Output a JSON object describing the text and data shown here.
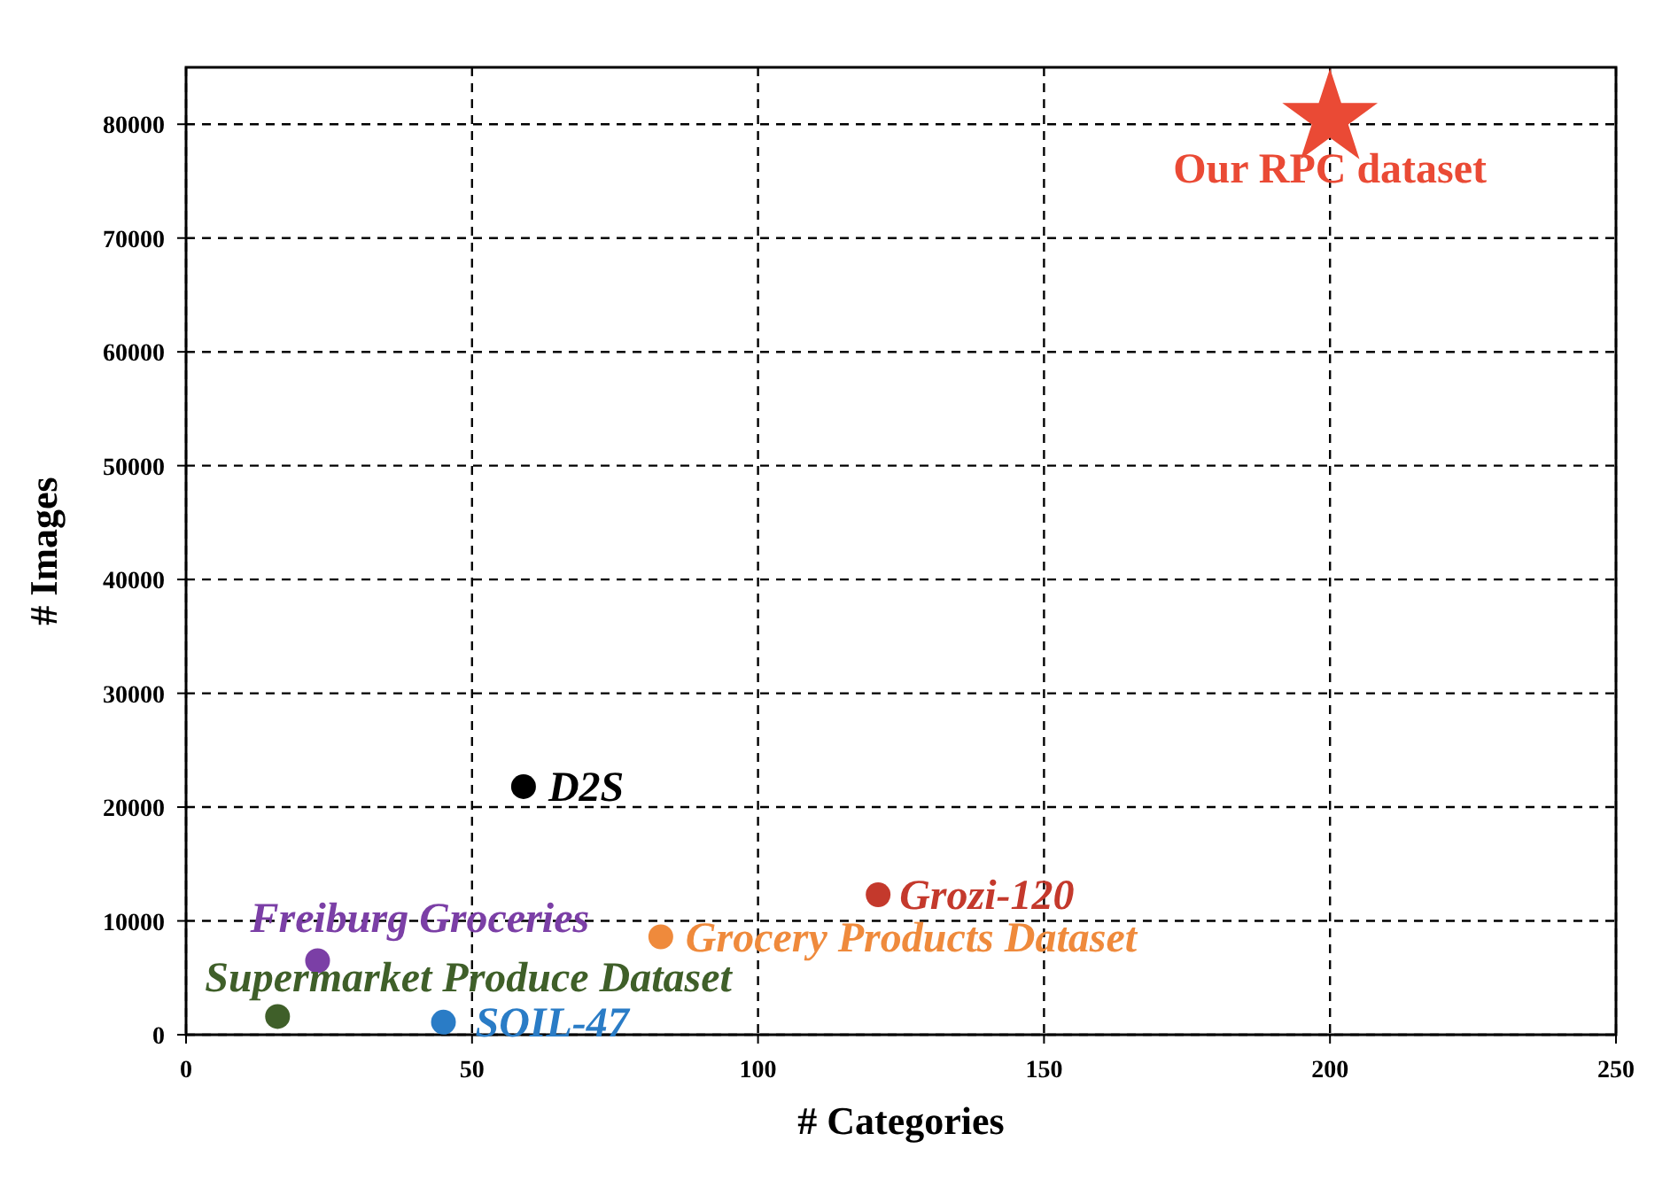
{
  "chart_data": {
    "type": "scatter",
    "xlabel": "# Categories",
    "ylabel": "# Images",
    "xlim": [
      0,
      250
    ],
    "xticks": [
      0,
      50,
      100,
      150,
      200,
      250
    ],
    "ylim": [
      0,
      85000
    ],
    "yticks": [
      0,
      10000,
      20000,
      30000,
      40000,
      50000,
      60000,
      70000,
      80000
    ],
    "grid": true,
    "line_style": "dashed",
    "series": [
      {
        "name": "Our RPC dataset",
        "color": "#ea4a35",
        "marker": "star",
        "x": [
          200
        ],
        "values": [
          80500
        ]
      },
      {
        "name": "D2S",
        "color": "#000000",
        "marker": "circle",
        "x": [
          59
        ],
        "values": [
          21800
        ]
      },
      {
        "name": "Grozi-120",
        "color": "#c4392c",
        "marker": "circle",
        "x": [
          121
        ],
        "values": [
          12300
        ]
      },
      {
        "name": "Grocery Products Dataset",
        "color": "#ef8a3c",
        "marker": "circle",
        "x": [
          83
        ],
        "values": [
          8600
        ]
      },
      {
        "name": "Freiburg Groceries",
        "color": "#7b3fa6",
        "marker": "circle",
        "x": [
          23
        ],
        "values": [
          6500
        ]
      },
      {
        "name": "Supermarket Produce Dataset",
        "color": "#3f5f29",
        "marker": "circle",
        "x": [
          16
        ],
        "values": [
          1600
        ]
      },
      {
        "name": "SOIL-47",
        "color": "#2a7cc6",
        "marker": "circle",
        "x": [
          45
        ],
        "values": [
          1100
        ]
      }
    ]
  }
}
